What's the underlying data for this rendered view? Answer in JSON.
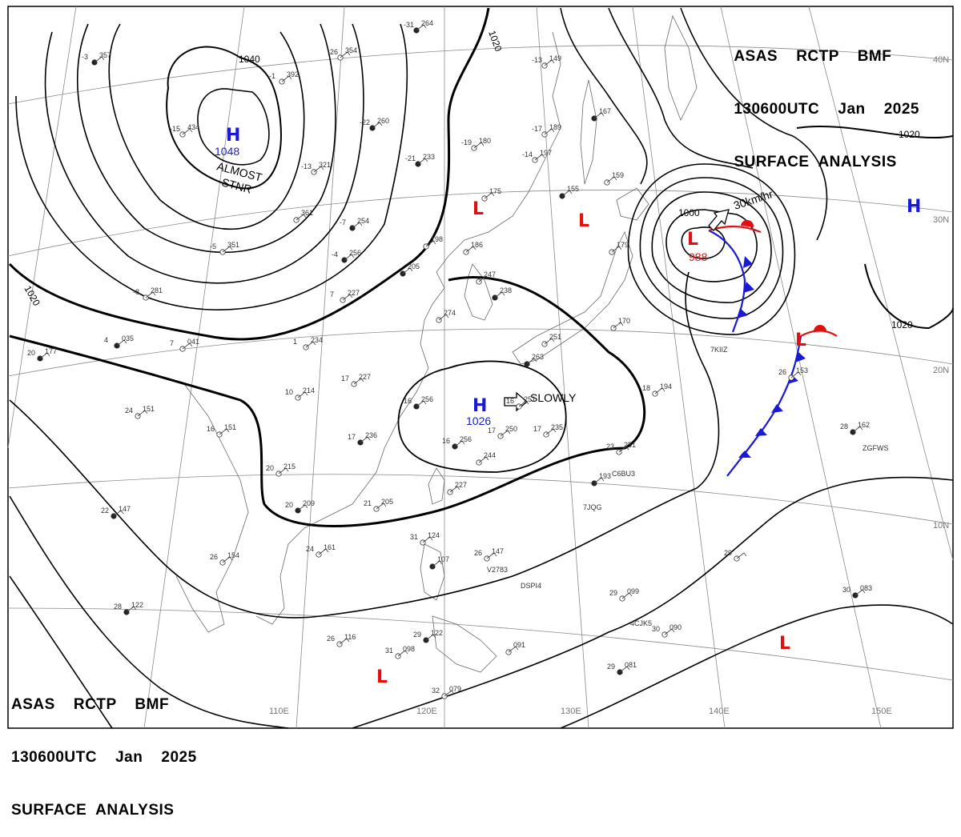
{
  "header": {
    "line1": "ASAS    RCTP    BMF",
    "line2": "130600UTC    Jan    2025",
    "line3": "SURFACE  ANALYSIS"
  },
  "colors": {
    "isobar": "#000000",
    "high": "#1a1ad6",
    "low": "#e01010",
    "cold_front": "#1a1ad6",
    "warm_front": "#e01010",
    "grid": "#8a8a8a",
    "coast": "#6a6a6a"
  },
  "grid_labels": {
    "lon_110": "110E",
    "lon_120": "120E",
    "lon_130": "130E",
    "lon_140": "140E",
    "lon_150": "150E",
    "lat_40": "40N",
    "lat_30": "30N",
    "lat_20": "20N",
    "lat_10": "10N"
  },
  "isobar_labels": {
    "a": "1040",
    "b": "1020",
    "c": "1020",
    "d": "1020",
    "e": "1000",
    "f": "1020"
  },
  "systems": [
    {
      "type": "H",
      "value": "1048",
      "note": "ALMOST",
      "note2": "STNR"
    },
    {
      "type": "H",
      "value": "1026",
      "note": "SLOWLY"
    },
    {
      "type": "L",
      "value": "988",
      "note": "30km/hr"
    },
    {
      "type": "H",
      "value": ""
    },
    {
      "type": "L",
      "value": ""
    },
    {
      "type": "L",
      "value": ""
    },
    {
      "type": "L",
      "value": ""
    },
    {
      "type": "L",
      "value": ""
    }
  ],
  "stations": [
    {
      "id": "s1",
      "t": "-3",
      "p": "357"
    },
    {
      "id": "s2",
      "t": "-1",
      "p": "392"
    },
    {
      "id": "s3",
      "t": "-26",
      "p": "354"
    },
    {
      "id": "s4",
      "t": "-31",
      "p": "264"
    },
    {
      "id": "s5",
      "t": "-13",
      "p": "149"
    },
    {
      "id": "s6",
      "t": "-15",
      "p": "434"
    },
    {
      "id": "s7",
      "t": "-22",
      "p": "260"
    },
    {
      "id": "s8",
      "t": "-17",
      "p": "189"
    },
    {
      "id": "s9",
      "t": "-19",
      "p": "180"
    },
    {
      "id": "s10",
      "t": "-21",
      "p": "233"
    },
    {
      "id": "s11",
      "t": "-13",
      "p": "321"
    },
    {
      "id": "s12",
      "t": "-14",
      "p": "197"
    },
    {
      "id": "s13",
      "t": "",
      "p": "167"
    },
    {
      "id": "s14",
      "t": "",
      "p": "175"
    },
    {
      "id": "s15",
      "t": "",
      "p": "159"
    },
    {
      "id": "s16",
      "t": "-7",
      "p": "254"
    },
    {
      "id": "s17",
      "t": "",
      "p": "361"
    },
    {
      "id": "s18",
      "t": "-5",
      "p": "351"
    },
    {
      "id": "s19",
      "t": "-4",
      "p": "256"
    },
    {
      "id": "s20",
      "t": "",
      "p": "198"
    },
    {
      "id": "s21",
      "t": "",
      "p": "186"
    },
    {
      "id": "s22",
      "t": "",
      "p": "205"
    },
    {
      "id": "s23",
      "t": "7",
      "p": "227"
    },
    {
      "id": "s24",
      "t": "-8",
      "p": "281"
    },
    {
      "id": "s25",
      "t": "4",
      "p": "035"
    },
    {
      "id": "s26",
      "t": "7",
      "p": "041"
    },
    {
      "id": "s27",
      "t": "1",
      "p": "234"
    },
    {
      "id": "s28",
      "t": "20",
      "p": "177"
    },
    {
      "id": "s29",
      "t": "10",
      "p": "214"
    },
    {
      "id": "s30",
      "t": "17",
      "p": "227"
    },
    {
      "id": "s31",
      "t": "16",
      "p": "256"
    },
    {
      "id": "s32",
      "t": "24",
      "p": "151"
    },
    {
      "id": "s33",
      "t": "16",
      "p": "151"
    },
    {
      "id": "s34",
      "t": "17",
      "p": "236"
    },
    {
      "id": "s35",
      "t": "17",
      "p": "250"
    },
    {
      "id": "s36",
      "t": "17",
      "p": "235"
    },
    {
      "id": "s37",
      "t": "16",
      "p": "256"
    },
    {
      "id": "s38",
      "t": "",
      "p": "244"
    },
    {
      "id": "s39",
      "t": "20",
      "p": "215"
    },
    {
      "id": "s40",
      "t": "20",
      "p": "209"
    },
    {
      "id": "s41",
      "t": "21",
      "p": "205"
    },
    {
      "id": "s42",
      "t": "",
      "p": "227"
    },
    {
      "id": "s43",
      "t": "22",
      "p": "147"
    },
    {
      "id": "s44",
      "t": "24",
      "p": "161"
    },
    {
      "id": "s45",
      "t": "26",
      "p": "154"
    },
    {
      "id": "s46",
      "t": "28",
      "p": "122"
    },
    {
      "id": "s47",
      "t": "26",
      "p": "116"
    },
    {
      "id": "s48",
      "t": "31",
      "p": "124"
    },
    {
      "id": "s49",
      "t": "",
      "p": "107"
    },
    {
      "id": "s50",
      "t": "26",
      "p": "147"
    },
    {
      "id": "s51",
      "t": "31",
      "p": "098"
    },
    {
      "id": "s52",
      "t": "29",
      "p": "122"
    },
    {
      "id": "s53",
      "t": "",
      "p": "091"
    },
    {
      "id": "s54",
      "t": "32",
      "p": "079"
    },
    {
      "id": "s55",
      "t": "29",
      "p": "081"
    },
    {
      "id": "s56",
      "t": "30",
      "p": "090"
    },
    {
      "id": "s57",
      "t": "29",
      "p": "099"
    },
    {
      "id": "s58",
      "t": "30",
      "p": "083"
    },
    {
      "id": "s59",
      "t": "29",
      "p": ""
    },
    {
      "id": "s60",
      "t": "23",
      "p": "251"
    },
    {
      "id": "s61",
      "t": "",
      "p": "193"
    },
    {
      "id": "s62",
      "t": "18",
      "p": "194"
    },
    {
      "id": "s63",
      "t": "26",
      "p": "153"
    },
    {
      "id": "s64",
      "t": "28",
      "p": "162"
    },
    {
      "id": "s65",
      "t": "16",
      "p": "251"
    },
    {
      "id": "s66",
      "t": "",
      "p": "170"
    },
    {
      "id": "s67",
      "t": "",
      "p": "155"
    },
    {
      "id": "s68",
      "t": "",
      "p": "179"
    },
    {
      "id": "s69",
      "t": "",
      "p": "274"
    },
    {
      "id": "s70",
      "t": "",
      "p": "238"
    },
    {
      "id": "s71",
      "t": "",
      "p": "247"
    },
    {
      "id": "s72",
      "t": "",
      "p": "251"
    },
    {
      "id": "s73",
      "t": "",
      "p": "263"
    }
  ],
  "ship_ids": [
    "C6BU3",
    "7JQG",
    "V2783",
    "DSPI4",
    "4CJK5",
    "ZGFWS",
    "7KIIZ"
  ]
}
